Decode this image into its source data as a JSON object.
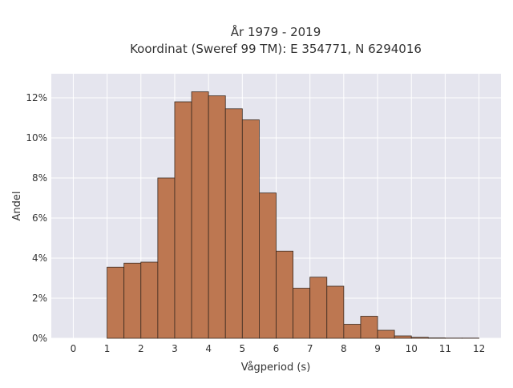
{
  "chart_data": {
    "type": "bar",
    "title_line1": "År 1979 - 2019",
    "title_line2": "Koordinat (Sweref 99 TM): E 354771, N 6294016",
    "xlabel": "Vågperiod (s)",
    "ylabel": "Andel",
    "x_ticks": [
      "0",
      "1",
      "2",
      "3",
      "4",
      "5",
      "6",
      "7",
      "8",
      "9",
      "10",
      "11",
      "12"
    ],
    "x_tick_values": [
      0,
      1,
      2,
      3,
      4,
      5,
      6,
      7,
      8,
      9,
      10,
      11,
      12
    ],
    "y_ticks": [
      "0%",
      "2%",
      "4%",
      "6%",
      "8%",
      "10%",
      "12%"
    ],
    "y_tick_values": [
      0,
      2,
      4,
      6,
      8,
      10,
      12
    ],
    "xlim": [
      -0.65,
      12.65
    ],
    "ylim": [
      0,
      13.2
    ],
    "bin_width": 0.5,
    "bins": [
      {
        "x": 0.0,
        "value": 0.0
      },
      {
        "x": 1.0,
        "value": 3.55
      },
      {
        "x": 1.5,
        "value": 3.75
      },
      {
        "x": 2.0,
        "value": 3.8
      },
      {
        "x": 2.5,
        "value": 8.0
      },
      {
        "x": 3.0,
        "value": 11.8
      },
      {
        "x": 3.5,
        "value": 12.3
      },
      {
        "x": 4.0,
        "value": 12.1
      },
      {
        "x": 4.5,
        "value": 11.45
      },
      {
        "x": 5.0,
        "value": 10.9
      },
      {
        "x": 5.5,
        "value": 7.25
      },
      {
        "x": 6.0,
        "value": 4.35
      },
      {
        "x": 6.5,
        "value": 2.5
      },
      {
        "x": 7.0,
        "value": 3.05
      },
      {
        "x": 7.5,
        "value": 2.6
      },
      {
        "x": 8.0,
        "value": 0.7
      },
      {
        "x": 8.5,
        "value": 1.1
      },
      {
        "x": 9.0,
        "value": 0.4
      },
      {
        "x": 9.5,
        "value": 0.12
      },
      {
        "x": 10.0,
        "value": 0.05
      },
      {
        "x": 10.5,
        "value": 0.02
      },
      {
        "x": 11.0,
        "value": 0.01
      },
      {
        "x": 11.5,
        "value": 0.01
      }
    ],
    "grid": true,
    "legend": "none",
    "colors": {
      "bar_fill": "#bd7751",
      "bar_edge": "#3a2a20",
      "plot_background": "#e5e5ee",
      "grid": "#ffffff"
    }
  }
}
